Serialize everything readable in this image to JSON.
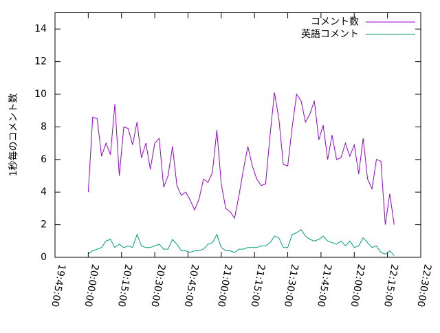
{
  "chart_data": {
    "type": "line",
    "ylabel": "1秒毎のコメント数",
    "xlim": [
      "19:45:00",
      "22:30:00"
    ],
    "xticks": [
      "19:45:00",
      "20:00:00",
      "20:15:00",
      "20:30:00",
      "20:45:00",
      "21:00:00",
      "21:15:00",
      "21:30:00",
      "21:45:00",
      "22:00:00",
      "22:15:00",
      "22:30:00"
    ],
    "ylim": [
      0,
      15
    ],
    "yticks": [
      0,
      2,
      4,
      6,
      8,
      10,
      12,
      14
    ],
    "legend": "top-right",
    "x": [
      "20:00:00",
      "20:02:00",
      "20:04:00",
      "20:06:00",
      "20:08:00",
      "20:10:00",
      "20:12:00",
      "20:14:00",
      "20:16:00",
      "20:18:00",
      "20:20:00",
      "20:22:00",
      "20:24:00",
      "20:26:00",
      "20:28:00",
      "20:30:00",
      "20:32:00",
      "20:34:00",
      "20:36:00",
      "20:38:00",
      "20:40:00",
      "20:42:00",
      "20:44:00",
      "20:46:00",
      "20:48:00",
      "20:50:00",
      "20:52:00",
      "20:54:00",
      "20:56:00",
      "20:58:00",
      "21:00:00",
      "21:02:00",
      "21:04:00",
      "21:06:00",
      "21:08:00",
      "21:10:00",
      "21:12:00",
      "21:14:00",
      "21:16:00",
      "21:18:00",
      "21:20:00",
      "21:22:00",
      "21:24:00",
      "21:26:00",
      "21:28:00",
      "21:30:00",
      "21:32:00",
      "21:34:00",
      "21:36:00",
      "21:38:00",
      "21:40:00",
      "21:42:00",
      "21:44:00",
      "21:46:00",
      "21:48:00",
      "21:50:00",
      "21:52:00",
      "21:54:00",
      "21:56:00",
      "21:58:00",
      "22:00:00",
      "22:02:00",
      "22:04:00",
      "22:06:00",
      "22:08:00",
      "22:10:00",
      "22:12:00",
      "22:14:00",
      "22:16:00",
      "22:18:00"
    ],
    "series": [
      {
        "name": "コメント数",
        "color": "#9400d3",
        "values": [
          4.0,
          8.6,
          8.5,
          6.2,
          7.0,
          6.3,
          9.4,
          5.0,
          8.0,
          7.9,
          6.9,
          8.3,
          6.1,
          7.0,
          5.4,
          7.0,
          7.3,
          4.3,
          5.0,
          6.8,
          4.4,
          3.8,
          4.0,
          3.5,
          2.9,
          3.6,
          4.8,
          4.6,
          5.2,
          7.8,
          4.5,
          3.0,
          2.8,
          2.4,
          3.8,
          5.4,
          6.8,
          5.6,
          4.8,
          4.4,
          4.5,
          7.5,
          10.1,
          8.5,
          5.7,
          5.6,
          8.0,
          10.0,
          9.6,
          8.3,
          8.8,
          9.6,
          7.2,
          8.1,
          6.0,
          7.5,
          6.0,
          6.1,
          7.0,
          6.2,
          6.9,
          5.1,
          7.3,
          4.8,
          4.2,
          6.0,
          5.9,
          2.0,
          3.9,
          2.0
        ]
      },
      {
        "name": "英語コメント",
        "color": "#009e73",
        "values": [
          0.2,
          0.4,
          0.5,
          0.6,
          1.0,
          1.1,
          0.6,
          0.8,
          0.6,
          0.7,
          0.6,
          1.4,
          0.7,
          0.6,
          0.6,
          0.7,
          0.8,
          0.5,
          0.5,
          1.1,
          0.8,
          0.4,
          0.4,
          0.3,
          0.4,
          0.4,
          0.5,
          0.8,
          0.9,
          1.4,
          0.6,
          0.4,
          0.4,
          0.3,
          0.5,
          0.5,
          0.6,
          0.6,
          0.6,
          0.7,
          0.7,
          0.9,
          1.3,
          1.2,
          0.6,
          0.6,
          1.4,
          1.5,
          1.7,
          1.3,
          1.1,
          1.0,
          1.1,
          1.3,
          1.0,
          0.9,
          0.8,
          1.0,
          0.7,
          1.0,
          0.6,
          0.7,
          1.2,
          0.9,
          0.6,
          0.7,
          0.3,
          0.2,
          0.4,
          0.1
        ]
      }
    ]
  }
}
